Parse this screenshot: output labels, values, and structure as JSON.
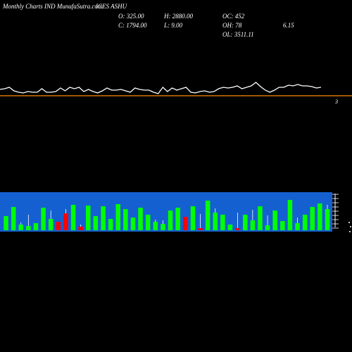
{
  "header": {
    "title": "Monthly Charts IND MunafaSutra.com",
    "symbol": "ICES ASHU",
    "open_label": "O: 325.00",
    "high_label": "H: 2880.00",
    "oc_label": "OC: 452",
    "close_label": "C: 1794.00",
    "low_label": "L: 9.00",
    "oh_label": "OH: 78",
    "oh_value": "6.15",
    "ol_label": "OL: 3511.11"
  },
  "colors": {
    "background": "#000000",
    "price_line": "#ffffff",
    "reference_line": "#ff8c00",
    "volume_band": "#1560d0",
    "up": "#00ff00",
    "down": "#ff0000"
  },
  "chart_data": {
    "type": "line",
    "price_line_marker": "3",
    "price_series": [
      {
        "values": [
          127,
          126,
          124,
          129,
          131,
          132,
          130,
          131,
          131,
          126,
          131,
          131,
          130,
          125,
          129,
          124,
          126,
          124,
          130,
          127,
          130,
          132,
          129,
          125,
          128,
          128,
          127,
          129,
          131,
          125,
          127,
          128,
          128,
          131,
          133,
          124,
          130,
          125,
          128,
          126,
          124,
          131,
          132,
          130,
          129,
          131,
          130,
          126,
          124,
          125,
          124,
          122,
          126,
          124,
          122,
          117,
          123,
          128,
          131,
          128,
          124,
          124,
          121,
          122,
          120,
          122,
          122,
          123,
          125,
          124
        ]
      }
    ],
    "volume_bars": [
      {
        "height": 20,
        "color": "up",
        "spike": 0
      },
      {
        "height": 33,
        "color": "up",
        "spike": 0
      },
      {
        "height": 8,
        "color": "up",
        "spike": 3
      },
      {
        "height": 6,
        "color": "up",
        "spike": 16
      },
      {
        "height": 10,
        "color": "up",
        "spike": 0
      },
      {
        "height": 32,
        "color": "up",
        "spike": 0
      },
      {
        "height": 16,
        "color": "up",
        "spike": 12
      },
      {
        "height": 12,
        "color": "down",
        "spike": 0
      },
      {
        "height": 24,
        "color": "down",
        "spike": 6
      },
      {
        "height": 36,
        "color": "up",
        "spike": 0
      },
      {
        "height": 5,
        "color": "down",
        "spike": 3
      },
      {
        "height": 35,
        "color": "up",
        "spike": 0
      },
      {
        "height": 20,
        "color": "up",
        "spike": 0
      },
      {
        "height": 34,
        "color": "up",
        "spike": 0
      },
      {
        "height": 16,
        "color": "up",
        "spike": 0
      },
      {
        "height": 37,
        "color": "up",
        "spike": 0
      },
      {
        "height": 30,
        "color": "up",
        "spike": 0
      },
      {
        "height": 18,
        "color": "up",
        "spike": 0
      },
      {
        "height": 32,
        "color": "up",
        "spike": 0
      },
      {
        "height": 22,
        "color": "up",
        "spike": 0
      },
      {
        "height": 12,
        "color": "up",
        "spike": 3
      },
      {
        "height": 9,
        "color": "up",
        "spike": 5
      },
      {
        "height": 28,
        "color": "up",
        "spike": 0
      },
      {
        "height": 32,
        "color": "up",
        "spike": 0
      },
      {
        "height": 19,
        "color": "down",
        "spike": 0
      },
      {
        "height": 34,
        "color": "up",
        "spike": 0
      },
      {
        "height": 3,
        "color": "down",
        "spike": 20
      },
      {
        "height": 42,
        "color": "up",
        "spike": 0
      },
      {
        "height": 25,
        "color": "up",
        "spike": 6
      },
      {
        "height": 22,
        "color": "up",
        "spike": 0
      },
      {
        "height": 8,
        "color": "up",
        "spike": 0
      },
      {
        "height": 3,
        "color": "down",
        "spike": 22
      },
      {
        "height": 22,
        "color": "up",
        "spike": 0
      },
      {
        "height": 14,
        "color": "up",
        "spike": 15
      },
      {
        "height": 34,
        "color": "up",
        "spike": 0
      },
      {
        "height": 7,
        "color": "up",
        "spike": 14
      },
      {
        "height": 28,
        "color": "up",
        "spike": 0
      },
      {
        "height": 13,
        "color": "up",
        "spike": 0
      },
      {
        "height": 43,
        "color": "up",
        "spike": 0
      },
      {
        "height": 10,
        "color": "up",
        "spike": 8
      },
      {
        "height": 22,
        "color": "up",
        "spike": 0
      },
      {
        "height": 33,
        "color": "up",
        "spike": 0
      },
      {
        "height": 38,
        "color": "up",
        "spike": 0
      },
      {
        "height": 30,
        "color": "up",
        "spike": 6
      }
    ]
  }
}
